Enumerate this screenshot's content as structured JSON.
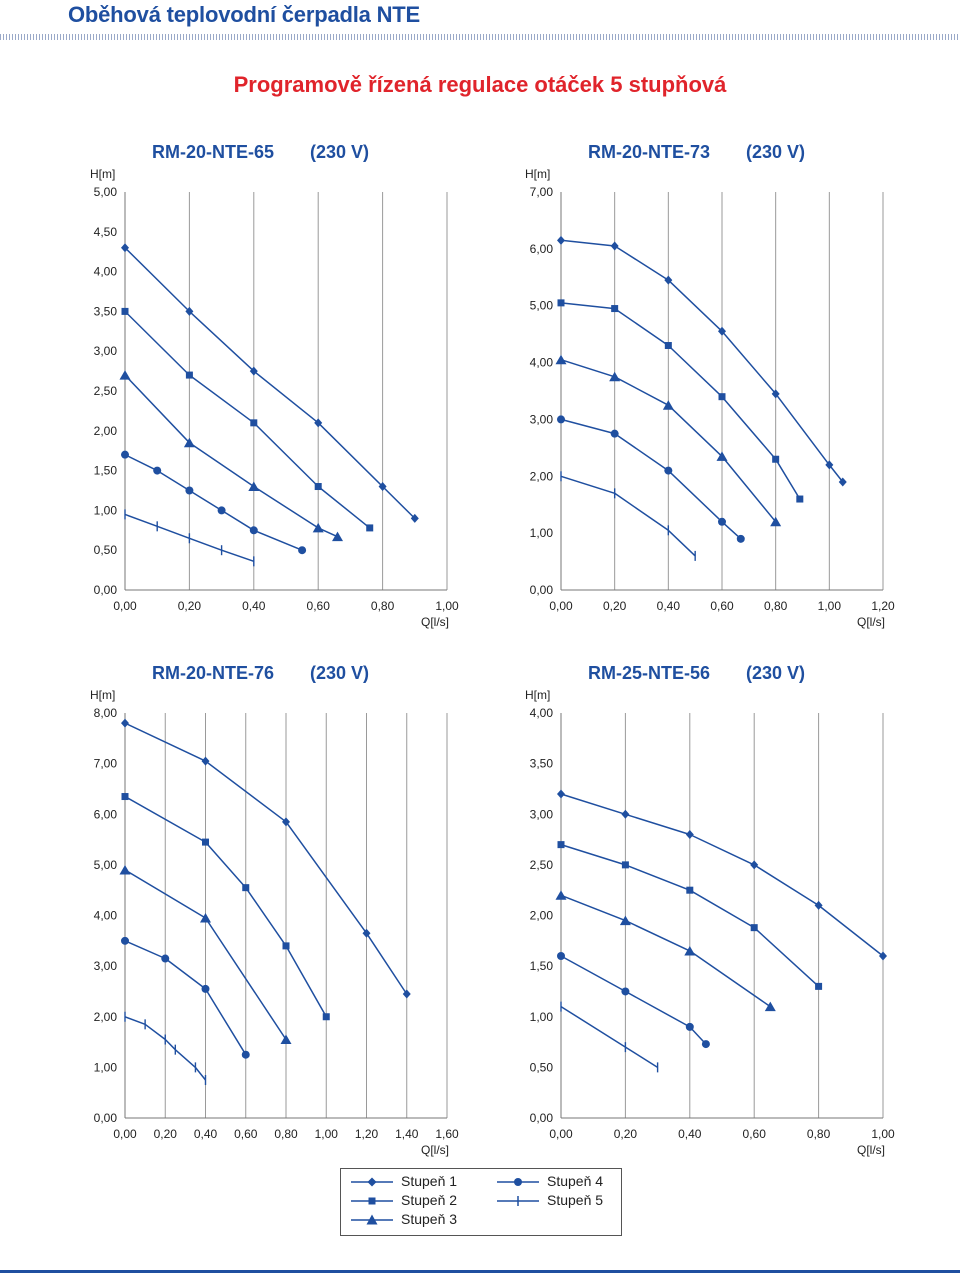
{
  "header": {
    "title": "Oběhová teplovodní čerpadla NTE",
    "subtitle": "Programově řízená regulace otáček 5 stupňová"
  },
  "colors": {
    "accent": "#1f4fa0",
    "title_red": "#e0242b",
    "grid": "#9a9a9a"
  },
  "legend": {
    "items": [
      {
        "label": "Stupeň 1",
        "marker": "diamond"
      },
      {
        "label": "Stupeň 2",
        "marker": "square"
      },
      {
        "label": "Stupeň 3",
        "marker": "triangle"
      },
      {
        "label": "Stupeň 4",
        "marker": "circle"
      },
      {
        "label": "Stupeň 5",
        "marker": "cross"
      }
    ]
  },
  "chart_data": [
    {
      "type": "line",
      "title": "RM-20-NTE-65",
      "voltage": "(230 V)",
      "ylabel": "H[m]",
      "xlabel": "Q[l/s]",
      "x_ticks": [
        "0,00",
        "0,20",
        "0,40",
        "0,60",
        "0,80",
        "1,00"
      ],
      "y_ticks": [
        "0,00",
        "0,50",
        "1,00",
        "1,50",
        "2,00",
        "2,50",
        "3,00",
        "3,50",
        "4,00",
        "4,50",
        "5,00"
      ],
      "xlim": [
        0,
        1.0
      ],
      "ylim": [
        0,
        5.0
      ],
      "grid": "vertical",
      "series": [
        {
          "name": "Stupeň 1",
          "marker": "diamond",
          "points": [
            [
              0,
              4.3
            ],
            [
              0.2,
              3.5
            ],
            [
              0.4,
              2.75
            ],
            [
              0.6,
              2.1
            ],
            [
              0.8,
              1.3
            ],
            [
              0.9,
              0.9
            ]
          ]
        },
        {
          "name": "Stupeň 2",
          "marker": "square",
          "points": [
            [
              0,
              3.5
            ],
            [
              0.2,
              2.7
            ],
            [
              0.4,
              2.1
            ],
            [
              0.6,
              1.3
            ],
            [
              0.76,
              0.78
            ]
          ]
        },
        {
          "name": "Stupeň 3",
          "marker": "triangle",
          "points": [
            [
              0,
              2.7
            ],
            [
              0.2,
              1.85
            ],
            [
              0.4,
              1.3
            ],
            [
              0.6,
              0.78
            ],
            [
              0.66,
              0.67
            ]
          ]
        },
        {
          "name": "Stupeň 4",
          "marker": "circle",
          "points": [
            [
              0,
              1.7
            ],
            [
              0.1,
              1.5
            ],
            [
              0.2,
              1.25
            ],
            [
              0.3,
              1.0
            ],
            [
              0.4,
              0.75
            ],
            [
              0.55,
              0.5
            ]
          ]
        },
        {
          "name": "Stupeň 5",
          "marker": "cross",
          "points": [
            [
              0,
              0.95
            ],
            [
              0.1,
              0.8
            ],
            [
              0.2,
              0.65
            ],
            [
              0.3,
              0.5
            ],
            [
              0.4,
              0.36
            ]
          ]
        }
      ]
    },
    {
      "type": "line",
      "title": "RM-20-NTE-73",
      "voltage": "(230 V)",
      "ylabel": "H[m]",
      "xlabel": "Q[l/s]",
      "x_ticks": [
        "0,00",
        "0,20",
        "0,40",
        "0,60",
        "0,80",
        "1,00",
        "1,20"
      ],
      "y_ticks": [
        "0,00",
        "1,00",
        "2,00",
        "3,00",
        "4,00",
        "5,00",
        "6,00",
        "7,00"
      ],
      "xlim": [
        0,
        1.2
      ],
      "ylim": [
        0,
        7.0
      ],
      "grid": "vertical",
      "series": [
        {
          "name": "Stupeň 1",
          "marker": "diamond",
          "points": [
            [
              0,
              6.15
            ],
            [
              0.2,
              6.05
            ],
            [
              0.4,
              5.45
            ],
            [
              0.6,
              4.55
            ],
            [
              0.8,
              3.45
            ],
            [
              1.0,
              2.2
            ],
            [
              1.05,
              1.9
            ]
          ]
        },
        {
          "name": "Stupeň 2",
          "marker": "square",
          "points": [
            [
              0,
              5.05
            ],
            [
              0.2,
              4.95
            ],
            [
              0.4,
              4.3
            ],
            [
              0.6,
              3.4
            ],
            [
              0.8,
              2.3
            ],
            [
              0.89,
              1.6
            ]
          ]
        },
        {
          "name": "Stupeň 3",
          "marker": "triangle",
          "points": [
            [
              0,
              4.05
            ],
            [
              0.2,
              3.75
            ],
            [
              0.4,
              3.25
            ],
            [
              0.6,
              2.35
            ],
            [
              0.8,
              1.2
            ]
          ]
        },
        {
          "name": "Stupeň 4",
          "marker": "circle",
          "points": [
            [
              0,
              3.0
            ],
            [
              0.2,
              2.75
            ],
            [
              0.4,
              2.1
            ],
            [
              0.6,
              1.2
            ],
            [
              0.67,
              0.9
            ]
          ]
        },
        {
          "name": "Stupeň 5",
          "marker": "cross",
          "points": [
            [
              0,
              2.0
            ],
            [
              0.2,
              1.7
            ],
            [
              0.4,
              1.05
            ],
            [
              0.5,
              0.6
            ]
          ]
        }
      ]
    },
    {
      "type": "line",
      "title": "RM-20-NTE-76",
      "voltage": "(230 V)",
      "ylabel": "H[m]",
      "xlabel": "Q[l/s]",
      "x_ticks": [
        "0,00",
        "0,20",
        "0,40",
        "0,60",
        "0,80",
        "1,00",
        "1,20",
        "1,40",
        "1,60"
      ],
      "y_ticks": [
        "0,00",
        "1,00",
        "2,00",
        "3,00",
        "4,00",
        "5,00",
        "6,00",
        "7,00",
        "8,00"
      ],
      "xlim": [
        0,
        1.6
      ],
      "ylim": [
        0,
        8.0
      ],
      "grid": "vertical",
      "series": [
        {
          "name": "Stupeň 1",
          "marker": "diamond",
          "points": [
            [
              0,
              7.8
            ],
            [
              0.4,
              7.05
            ],
            [
              0.8,
              5.85
            ],
            [
              1.2,
              3.65
            ],
            [
              1.4,
              2.45
            ]
          ]
        },
        {
          "name": "Stupeň 2",
          "marker": "square",
          "points": [
            [
              0,
              6.35
            ],
            [
              0.4,
              5.45
            ],
            [
              0.6,
              4.55
            ],
            [
              0.8,
              3.4
            ],
            [
              1.0,
              2.0
            ]
          ]
        },
        {
          "name": "Stupeň 3",
          "marker": "triangle",
          "points": [
            [
              0,
              4.9
            ],
            [
              0.4,
              3.95
            ],
            [
              0.8,
              1.55
            ]
          ]
        },
        {
          "name": "Stupeň 4",
          "marker": "circle",
          "points": [
            [
              0,
              3.5
            ],
            [
              0.2,
              3.15
            ],
            [
              0.4,
              2.55
            ],
            [
              0.6,
              1.25
            ]
          ]
        },
        {
          "name": "Stupeň 5",
          "marker": "cross",
          "points": [
            [
              0,
              2.0
            ],
            [
              0.1,
              1.85
            ],
            [
              0.2,
              1.55
            ],
            [
              0.25,
              1.35
            ],
            [
              0.35,
              1.0
            ],
            [
              0.4,
              0.75
            ]
          ]
        }
      ]
    },
    {
      "type": "line",
      "title": "RM-25-NTE-56",
      "voltage": "(230 V)",
      "ylabel": "H[m]",
      "xlabel": "Q[l/s]",
      "x_ticks": [
        "0,00",
        "0,20",
        "0,40",
        "0,60",
        "0,80",
        "1,00"
      ],
      "y_ticks": [
        "0,00",
        "0,50",
        "1,00",
        "1,50",
        "2,00",
        "2,50",
        "3,00",
        "3,50",
        "4,00"
      ],
      "xlim": [
        0,
        1.0
      ],
      "ylim": [
        0,
        4.0
      ],
      "grid": "vertical",
      "series": [
        {
          "name": "Stupeň 1",
          "marker": "diamond",
          "points": [
            [
              0,
              3.2
            ],
            [
              0.2,
              3.0
            ],
            [
              0.4,
              2.8
            ],
            [
              0.6,
              2.5
            ],
            [
              0.8,
              2.1
            ],
            [
              1.0,
              1.6
            ]
          ]
        },
        {
          "name": "Stupeň 2",
          "marker": "square",
          "points": [
            [
              0,
              2.7
            ],
            [
              0.2,
              2.5
            ],
            [
              0.4,
              2.25
            ],
            [
              0.6,
              1.88
            ],
            [
              0.8,
              1.3
            ]
          ]
        },
        {
          "name": "Stupeň 3",
          "marker": "triangle",
          "points": [
            [
              0,
              2.2
            ],
            [
              0.2,
              1.95
            ],
            [
              0.4,
              1.65
            ],
            [
              0.65,
              1.1
            ]
          ]
        },
        {
          "name": "Stupeň 4",
          "marker": "circle",
          "points": [
            [
              0,
              1.6
            ],
            [
              0.2,
              1.25
            ],
            [
              0.4,
              0.9
            ],
            [
              0.45,
              0.73
            ]
          ]
        },
        {
          "name": "Stupeň 5",
          "marker": "cross",
          "points": [
            [
              0,
              1.1
            ],
            [
              0.2,
              0.7
            ],
            [
              0.3,
              0.5
            ]
          ]
        }
      ]
    }
  ]
}
